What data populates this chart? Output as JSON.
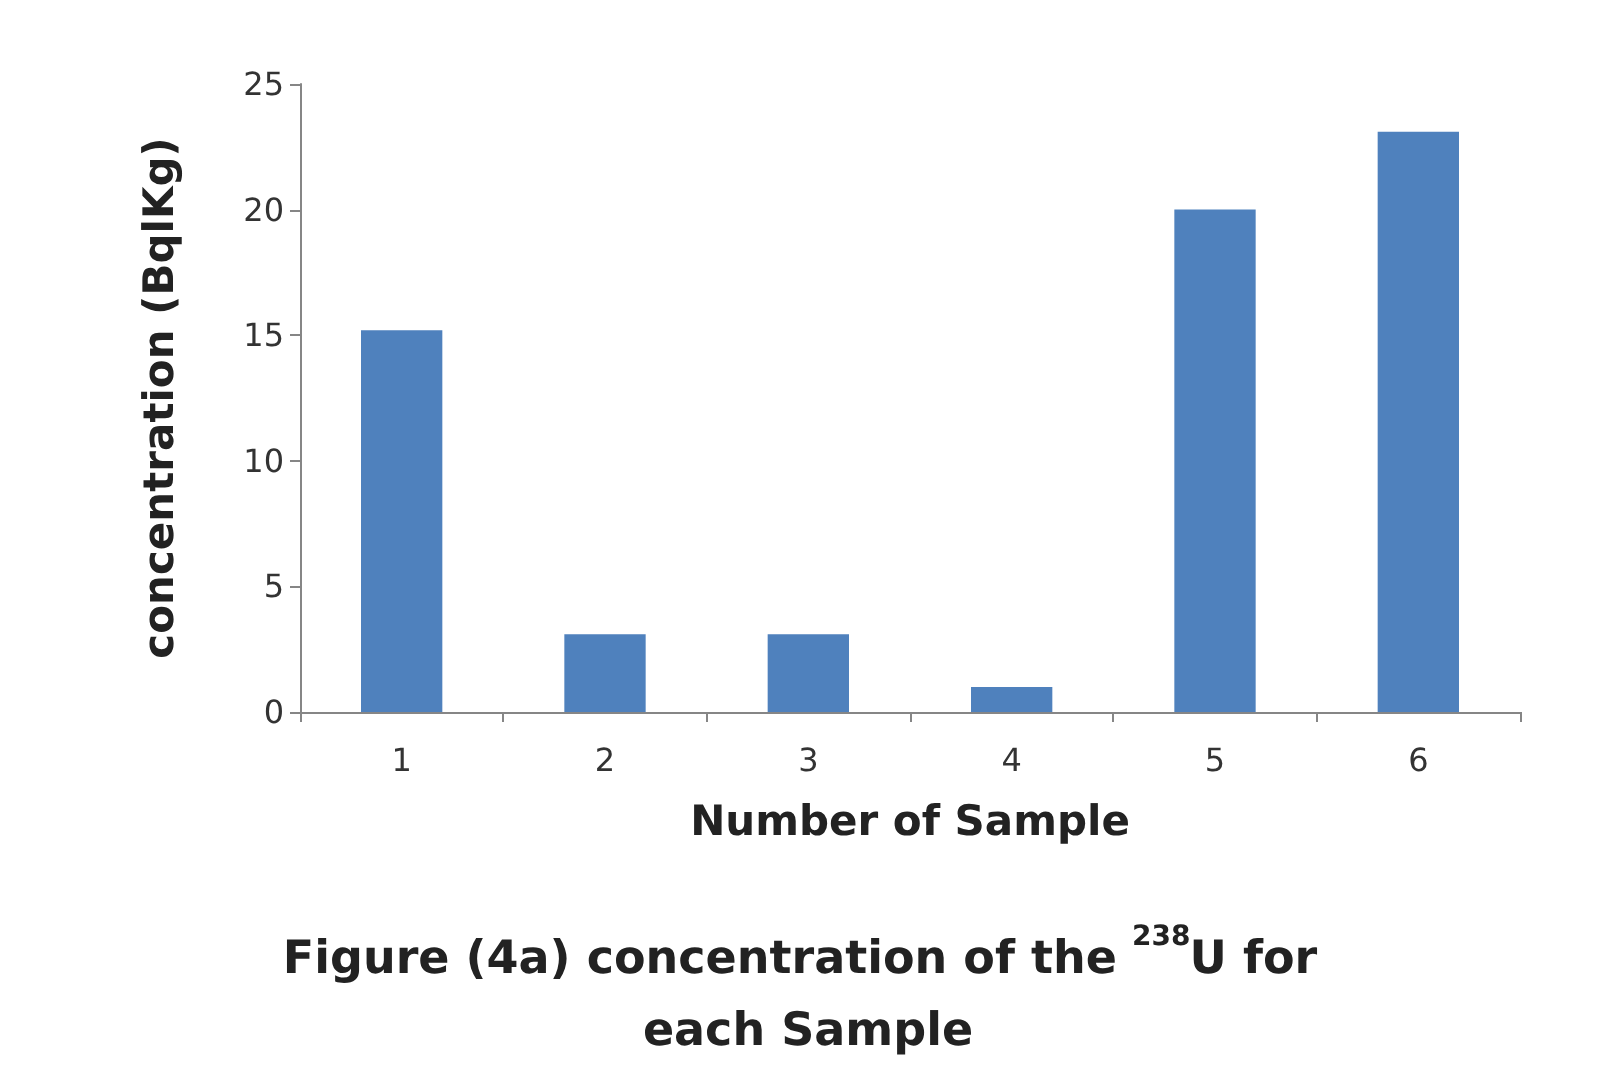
{
  "chart_data": {
    "type": "bar",
    "title": "Figure (4a) concentration of the $^{238}$U for each Sample",
    "xlabel": "Number of Sample",
    "ylabel": "concentration (BqlKg)",
    "categories": [
      "1",
      "2",
      "3",
      "4",
      "5",
      "6"
    ],
    "values": [
      15.2,
      3.1,
      3.1,
      1.0,
      20.0,
      23.1
    ],
    "color": "#4f81bd",
    "ylim": [
      0,
      25
    ],
    "yticks": [
      0,
      5,
      10,
      15,
      20,
      25
    ],
    "grid": false
  }
}
